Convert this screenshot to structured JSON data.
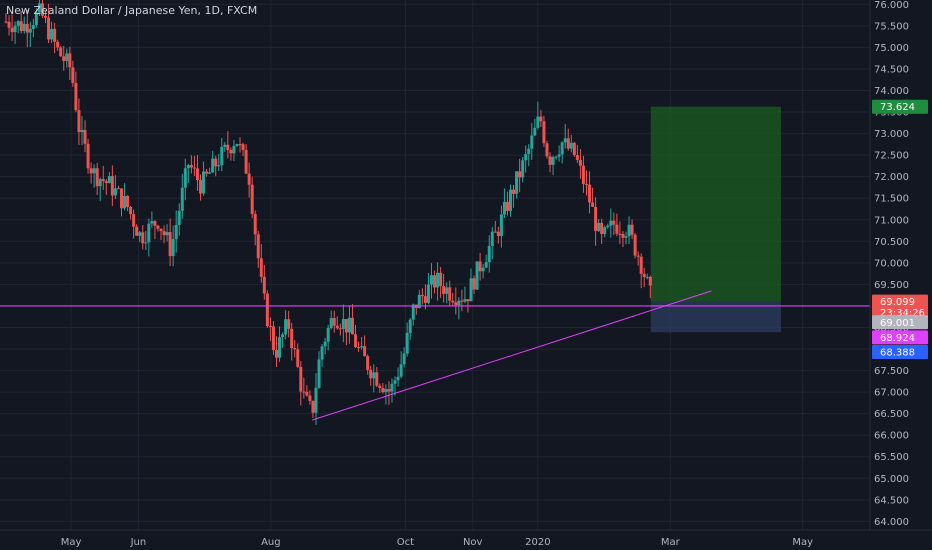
{
  "title": "New Zealand Dollar / Japanese Yen, 1D, FXCM",
  "colors": {
    "background": "#131722",
    "grid": "#1f2431",
    "up": "#26a69a",
    "down": "#ef5350",
    "profit_zone": "#1b5e20",
    "loss_zone": "#2a3b5c",
    "horizontal_line": "#e040fb",
    "trend_line": "#e040fb"
  },
  "chart_data": {
    "type": "candlestick",
    "title": "New Zealand Dollar / Japanese Yen, 1D, FXCM",
    "ylim": [
      63.8,
      76.1
    ],
    "price_ticks": [
      "76.000",
      "75.500",
      "75.000",
      "74.500",
      "74.000",
      "73.500",
      "73.000",
      "72.500",
      "72.000",
      "71.500",
      "71.000",
      "70.500",
      "70.000",
      "69.500",
      "69.000",
      "68.500",
      "68.000",
      "67.500",
      "67.000",
      "66.500",
      "66.000",
      "65.500",
      "65.000",
      "64.500",
      "64.000"
    ],
    "time_labels": [
      {
        "label": "May",
        "day": 30
      },
      {
        "label": "Jun",
        "day": 61
      },
      {
        "label": "Aug",
        "day": 122
      },
      {
        "label": "Oct",
        "day": 184
      },
      {
        "label": "Nov",
        "day": 215
      },
      {
        "label": "2020",
        "day": 245
      },
      {
        "label": "Mar",
        "day": 306
      },
      {
        "label": "May",
        "day": 367
      }
    ],
    "x_range_days": [
      0,
      398
    ],
    "close_path": [
      [
        0,
        75.6
      ],
      [
        8,
        75.5
      ],
      [
        16,
        75.8
      ],
      [
        24,
        74.9
      ],
      [
        30,
        74.5
      ],
      [
        34,
        73.0
      ],
      [
        40,
        72.1
      ],
      [
        48,
        71.8
      ],
      [
        56,
        71.3
      ],
      [
        62,
        70.6
      ],
      [
        70,
        71.0
      ],
      [
        76,
        70.3
      ],
      [
        84,
        72.3
      ],
      [
        90,
        71.8
      ],
      [
        98,
        72.4
      ],
      [
        106,
        72.9
      ],
      [
        112,
        72.0
      ],
      [
        118,
        69.3
      ],
      [
        124,
        67.9
      ],
      [
        130,
        68.6
      ],
      [
        137,
        66.9
      ],
      [
        141,
        66.5
      ],
      [
        145,
        68.0
      ],
      [
        151,
        68.8
      ],
      [
        158,
        68.5
      ],
      [
        163,
        67.9
      ],
      [
        170,
        67.4
      ],
      [
        177,
        67.0
      ],
      [
        183,
        67.8
      ],
      [
        188,
        69.0
      ],
      [
        193,
        69.3
      ],
      [
        198,
        69.6
      ],
      [
        205,
        69.3
      ],
      [
        212,
        69.2
      ],
      [
        218,
        69.9
      ],
      [
        226,
        70.7
      ],
      [
        232,
        71.5
      ],
      [
        240,
        72.5
      ],
      [
        246,
        73.4
      ],
      [
        250,
        72.4
      ],
      [
        256,
        72.8
      ],
      [
        262,
        72.5
      ],
      [
        268,
        71.6
      ],
      [
        274,
        70.5
      ],
      [
        280,
        70.9
      ],
      [
        286,
        70.8
      ],
      [
        292,
        70.1
      ],
      [
        297,
        69.2
      ]
    ],
    "levels": {
      "current": "69.099",
      "countdown": "23:34:26",
      "stop_level": "69.001",
      "horizontal": "68.924",
      "low_label": "68.388",
      "target": "73.624"
    },
    "position": {
      "day_start": 297,
      "day_end": 357,
      "target": 73.624,
      "entry": 69.101,
      "stop": 68.388
    },
    "horizontal_line": 69.0,
    "trend_line": {
      "from": [
        141,
        66.35
      ],
      "to": [
        325,
        69.35
      ]
    },
    "grid": true
  }
}
